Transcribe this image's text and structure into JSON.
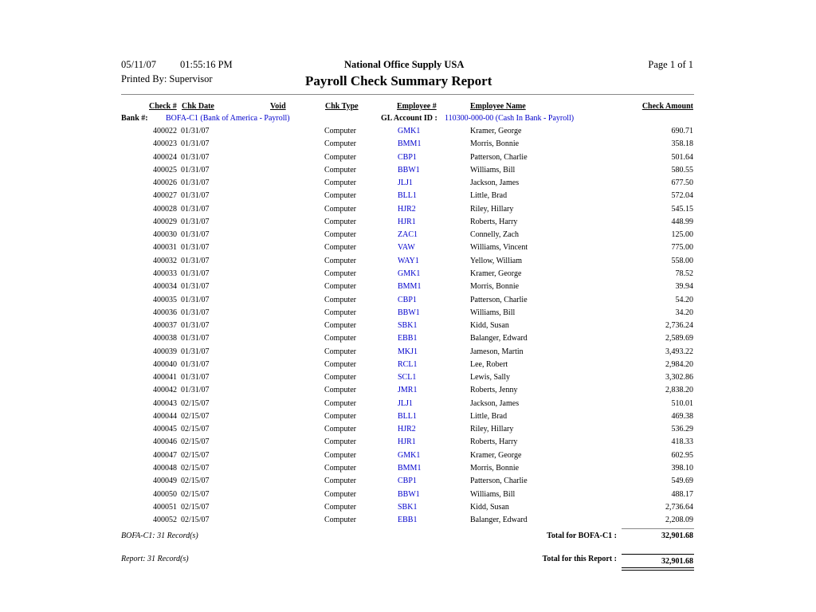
{
  "header": {
    "date": "05/11/07",
    "time": "01:55:16 PM",
    "company": "National Office Supply USA",
    "page": "Page 1 of  1",
    "printed_by": "Printed By: Supervisor",
    "title": "Payroll Check Summary Report"
  },
  "columns": {
    "check": "Check #",
    "date": "Chk Date",
    "void": "Void",
    "type": "Chk Type",
    "emp": "Employee #",
    "name": "Employee Name",
    "amount": "Check Amount"
  },
  "bank": {
    "label": "Bank #:",
    "value": "BOFA-C1 (Bank of America - Payroll)",
    "gl_label": "GL Account ID :",
    "gl_value": "110300-000-00 (Cash In Bank - Payroll)"
  },
  "rows": [
    [
      "400022",
      "01/31/07",
      "Computer",
      "GMK1",
      "Kramer, George",
      "690.71"
    ],
    [
      "400023",
      "01/31/07",
      "Computer",
      "BMM1",
      "Morris, Bonnie",
      "358.18"
    ],
    [
      "400024",
      "01/31/07",
      "Computer",
      "CBP1",
      "Patterson, Charlie",
      "501.64"
    ],
    [
      "400025",
      "01/31/07",
      "Computer",
      "BBW1",
      "Williams, Bill",
      "580.55"
    ],
    [
      "400026",
      "01/31/07",
      "Computer",
      "JLJ1",
      "Jackson, James",
      "677.50"
    ],
    [
      "400027",
      "01/31/07",
      "Computer",
      "BLL1",
      "Little, Brad",
      "572.04"
    ],
    [
      "400028",
      "01/31/07",
      "Computer",
      "HJR2",
      "Riley, Hillary",
      "545.15"
    ],
    [
      "400029",
      "01/31/07",
      "Computer",
      "HJR1",
      "Roberts, Harry",
      "448.99"
    ],
    [
      "400030",
      "01/31/07",
      "Computer",
      "ZAC1",
      "Connelly, Zach",
      "125.00"
    ],
    [
      "400031",
      "01/31/07",
      "Computer",
      "VAW",
      "Williams, Vincent",
      "775.00"
    ],
    [
      "400032",
      "01/31/07",
      "Computer",
      "WAY1",
      "Yellow, William",
      "558.00"
    ],
    [
      "400033",
      "01/31/07",
      "Computer",
      "GMK1",
      "Kramer, George",
      "78.52"
    ],
    [
      "400034",
      "01/31/07",
      "Computer",
      "BMM1",
      "Morris, Bonnie",
      "39.94"
    ],
    [
      "400035",
      "01/31/07",
      "Computer",
      "CBP1",
      "Patterson, Charlie",
      "54.20"
    ],
    [
      "400036",
      "01/31/07",
      "Computer",
      "BBW1",
      "Williams, Bill",
      "34.20"
    ],
    [
      "400037",
      "01/31/07",
      "Computer",
      "SBK1",
      "Kidd, Susan",
      "2,736.24"
    ],
    [
      "400038",
      "01/31/07",
      "Computer",
      "EBB1",
      "Balanger, Edward",
      "2,589.69"
    ],
    [
      "400039",
      "01/31/07",
      "Computer",
      "MKJ1",
      "Jameson, Martin",
      "3,493.22"
    ],
    [
      "400040",
      "01/31/07",
      "Computer",
      "RCL1",
      "Lee, Robert",
      "2,984.20"
    ],
    [
      "400041",
      "01/31/07",
      "Computer",
      "SCL1",
      "Lewis, Sally",
      "3,302.86"
    ],
    [
      "400042",
      "01/31/07",
      "Computer",
      "JMR1",
      "Roberts, Jenny",
      "2,838.20"
    ],
    [
      "400043",
      "02/15/07",
      "Computer",
      "JLJ1",
      "Jackson, James",
      "510.01"
    ],
    [
      "400044",
      "02/15/07",
      "Computer",
      "BLL1",
      "Little, Brad",
      "469.38"
    ],
    [
      "400045",
      "02/15/07",
      "Computer",
      "HJR2",
      "Riley, Hillary",
      "536.29"
    ],
    [
      "400046",
      "02/15/07",
      "Computer",
      "HJR1",
      "Roberts, Harry",
      "418.33"
    ],
    [
      "400047",
      "02/15/07",
      "Computer",
      "GMK1",
      "Kramer, George",
      "602.95"
    ],
    [
      "400048",
      "02/15/07",
      "Computer",
      "BMM1",
      "Morris, Bonnie",
      "398.10"
    ],
    [
      "400049",
      "02/15/07",
      "Computer",
      "CBP1",
      "Patterson, Charlie",
      "549.69"
    ],
    [
      "400050",
      "02/15/07",
      "Computer",
      "BBW1",
      "Williams, Bill",
      "488.17"
    ],
    [
      "400051",
      "02/15/07",
      "Computer",
      "SBK1",
      "Kidd, Susan",
      "2,736.64"
    ],
    [
      "400052",
      "02/15/07",
      "Computer",
      "EBB1",
      "Balanger, Edward",
      "2,208.09"
    ]
  ],
  "footer": {
    "bank_records": "BOFA-C1: 31 Record(s)",
    "bank_total_label": "Total for BOFA-C1 :",
    "bank_total": "32,901.68",
    "report_records": "Report: 31 Record(s)",
    "report_total_label": "Total for this Report :",
    "report_total": "32,901.68"
  },
  "colors": {
    "link": "#0000cc"
  }
}
